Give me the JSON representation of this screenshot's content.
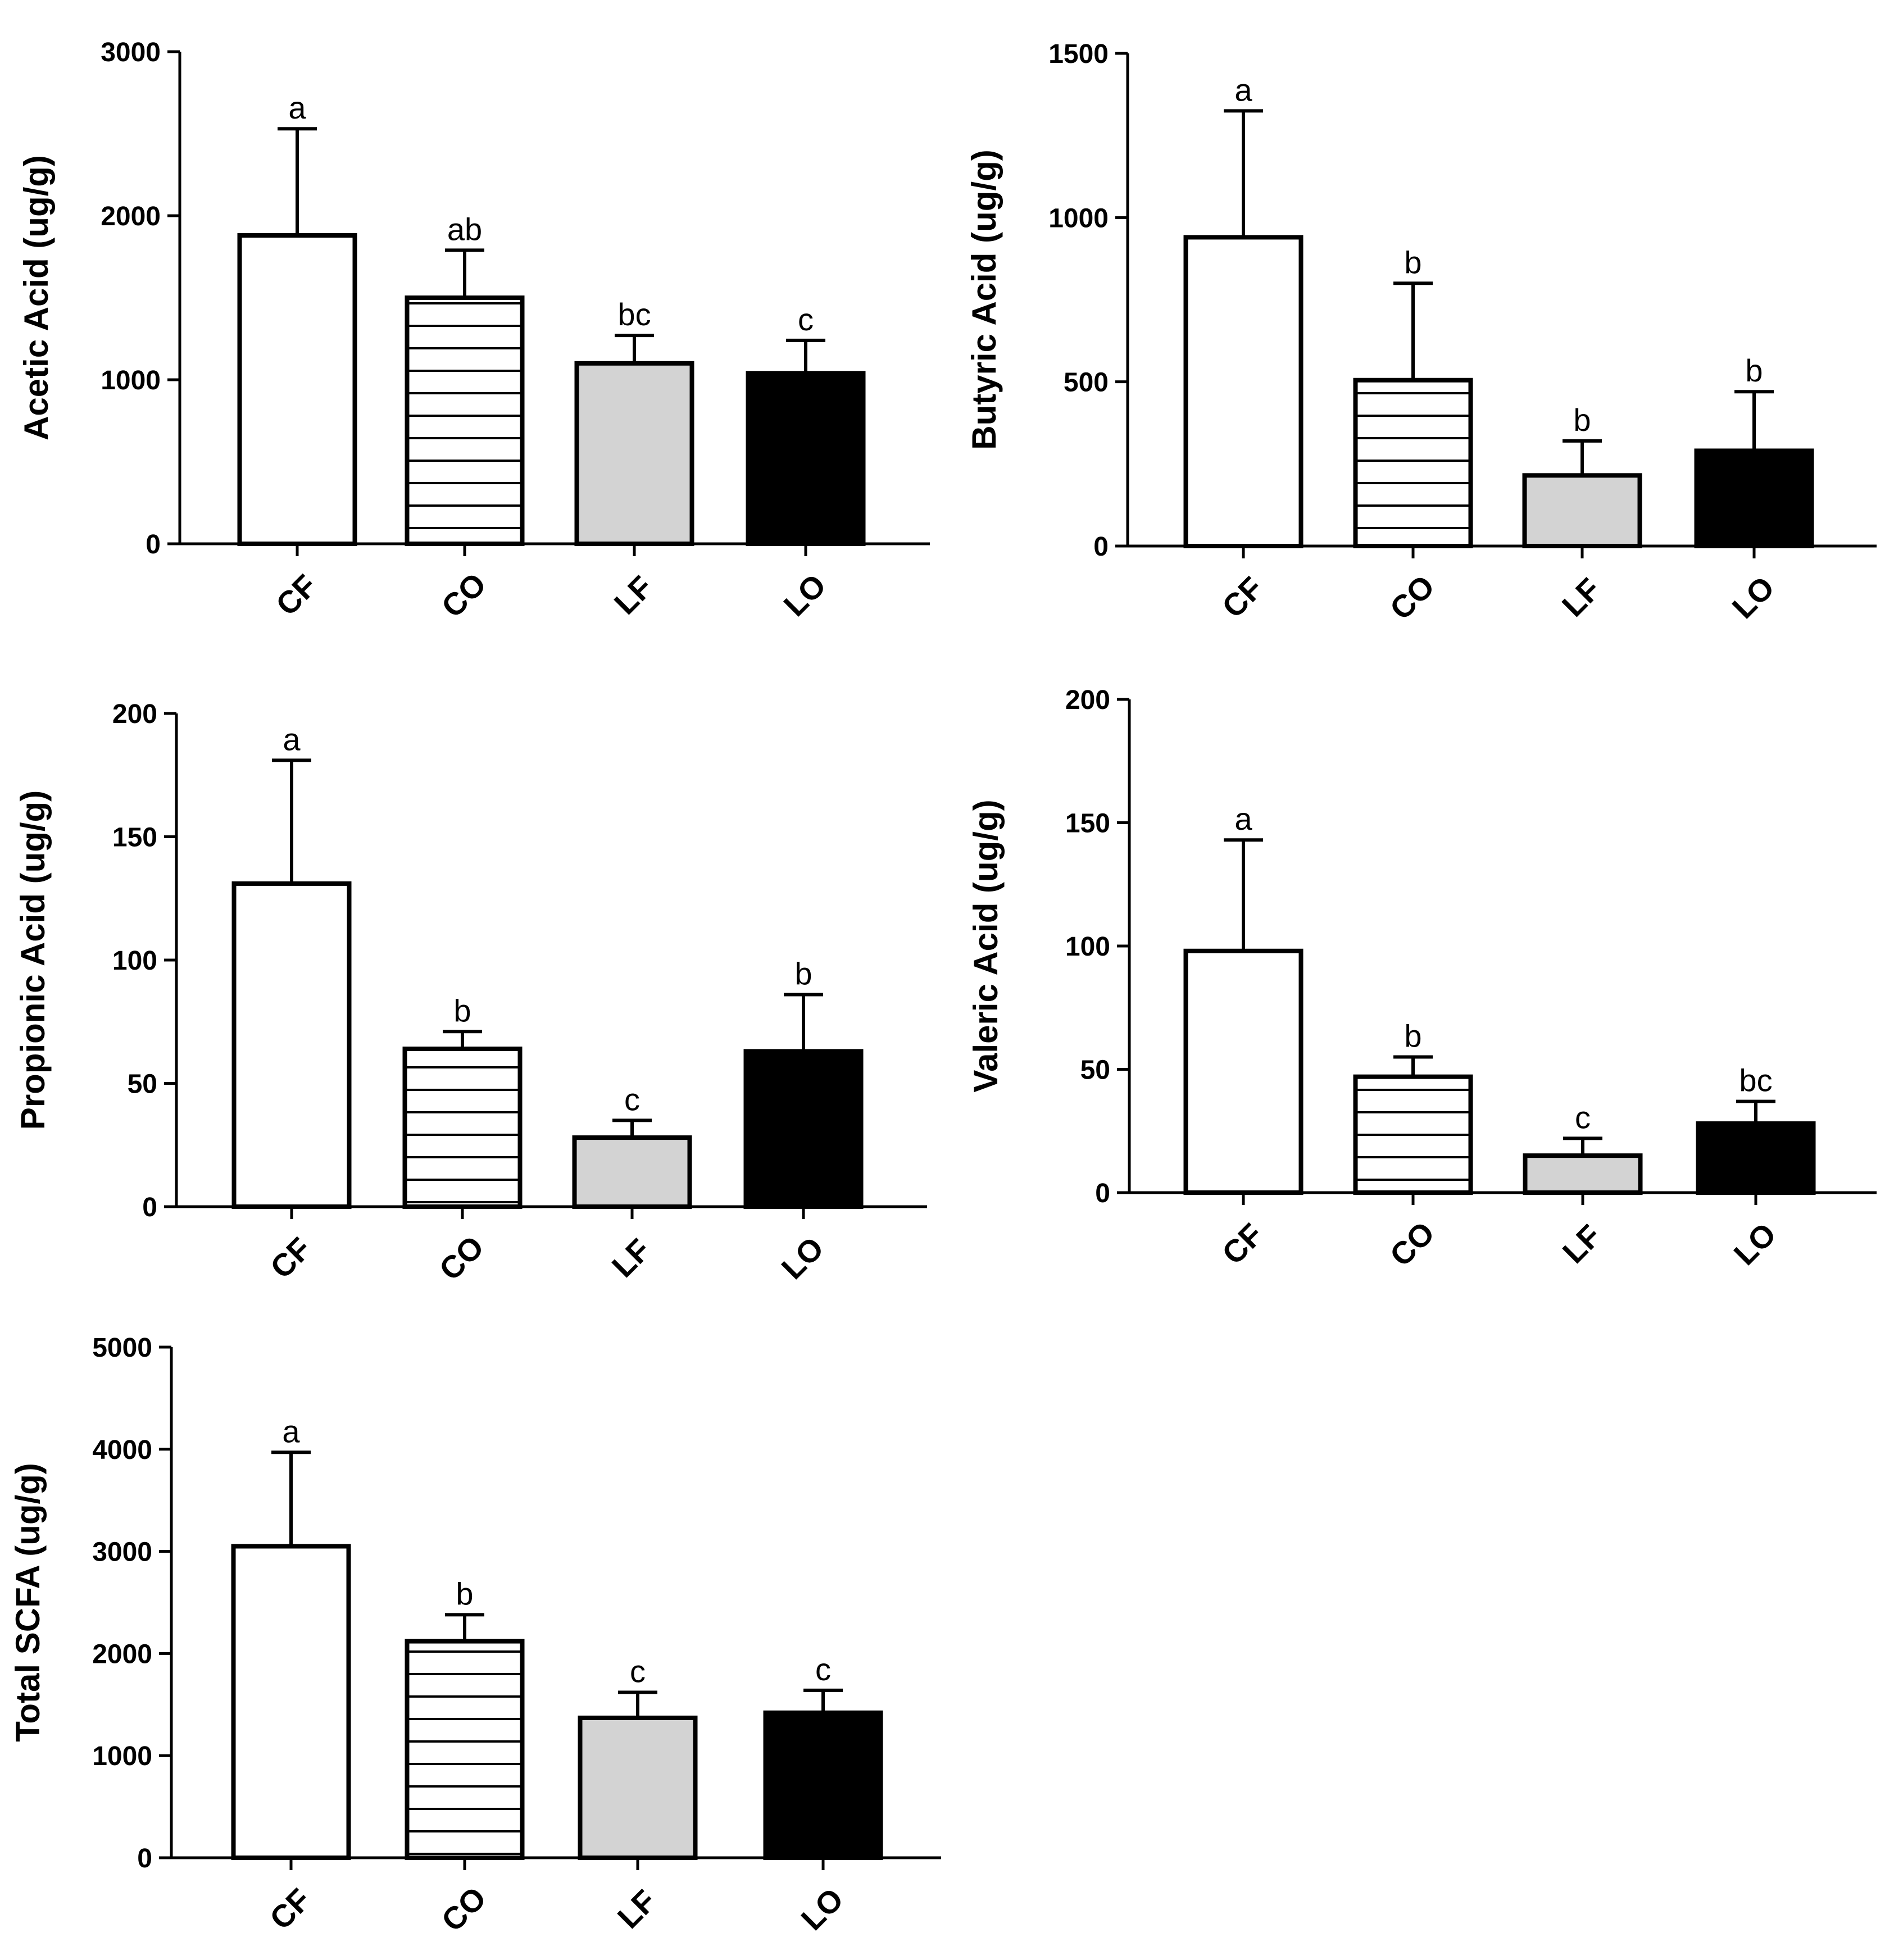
{
  "colors": {
    "CF": "#ffffff",
    "CO": "hatch",
    "LF": "#d3d3d3",
    "LO": "#000000"
  },
  "chart_data": [
    {
      "id": "acetic",
      "type": "bar",
      "ylabel": "Acetic Acid (ug/g)",
      "categories": [
        "CF",
        "CO",
        "LF",
        "LO"
      ],
      "values": [
        1880,
        1500,
        1100,
        1040
      ],
      "errors": [
        650,
        290,
        170,
        200
      ],
      "significance": [
        "a",
        "ab",
        "bc",
        "c"
      ],
      "ylim": [
        0,
        3000
      ],
      "yticks": [
        0,
        1000,
        2000,
        3000
      ]
    },
    {
      "id": "butyric",
      "type": "bar",
      "ylabel": "Butyric Acid (ug/g)",
      "categories": [
        "CF",
        "CO",
        "LF",
        "LO"
      ],
      "values": [
        940,
        505,
        215,
        290
      ],
      "errors": [
        385,
        295,
        105,
        180
      ],
      "significance": [
        "a",
        "b",
        "b",
        "b"
      ],
      "ylim": [
        0,
        1500
      ],
      "yticks": [
        0,
        500,
        1000,
        1500
      ]
    },
    {
      "id": "propionic",
      "type": "bar",
      "ylabel": "Propionic Acid (ug/g)",
      "categories": [
        "CF",
        "CO",
        "LF",
        "LO"
      ],
      "values": [
        131,
        64,
        28,
        63
      ],
      "errors": [
        50,
        7,
        7,
        23
      ],
      "significance": [
        "a",
        "b",
        "c",
        "b"
      ],
      "ylim": [
        0,
        200
      ],
      "yticks": [
        0,
        50,
        100,
        150,
        200
      ]
    },
    {
      "id": "valeric",
      "type": "bar",
      "ylabel": "Valeric Acid (ug/g)",
      "categories": [
        "CF",
        "CO",
        "LF",
        "LO"
      ],
      "values": [
        98,
        47,
        15,
        28
      ],
      "errors": [
        45,
        8,
        7,
        9
      ],
      "significance": [
        "a",
        "b",
        "c",
        "bc"
      ],
      "ylim": [
        0,
        200
      ],
      "yticks": [
        0,
        50,
        100,
        150,
        200
      ]
    },
    {
      "id": "total",
      "type": "bar",
      "ylabel": "Total SCFA (ug/g)",
      "categories": [
        "CF",
        "CO",
        "LF",
        "LO"
      ],
      "values": [
        3050,
        2120,
        1370,
        1420
      ],
      "errors": [
        920,
        260,
        250,
        220
      ],
      "significance": [
        "a",
        "b",
        "c",
        "c"
      ],
      "ylim": [
        0,
        5000
      ],
      "yticks": [
        0,
        1000,
        2000,
        3000,
        4000,
        5000
      ]
    }
  ]
}
